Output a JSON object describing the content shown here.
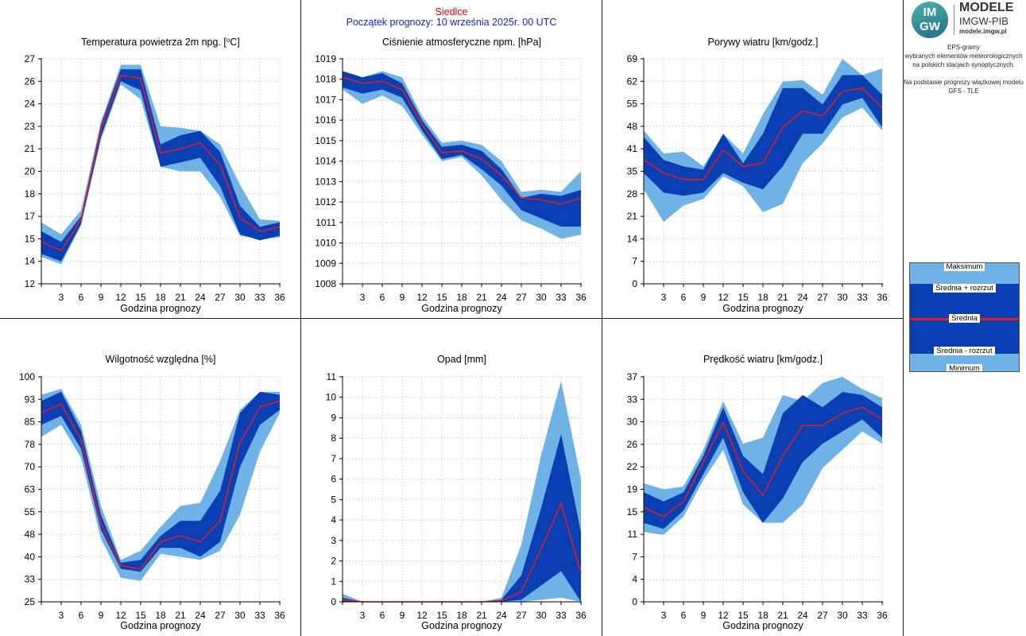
{
  "header": {
    "station": "Siedlce",
    "forecast_start": "Początek prognozy: 10 września 2025r. 00 UTC"
  },
  "logo": {
    "mark": "IM GW",
    "line1": "MODELE",
    "line2": "IMGW-PIB",
    "line3": "modele.imgw.pl"
  },
  "info": {
    "line1": "EPS-gramy",
    "line2": "wybranych elementów meteorologicznych",
    "line3": "na polskich stacjach  synoptycznych.",
    "line4": "Na podstawie prognozy wiązkowej modelu",
    "line5": "GFS - TLE"
  },
  "legend": {
    "max": "Maksimum",
    "upper": "Średnia + rozrzut",
    "mean": "Średnia",
    "lower": "Średnia - rozrzut",
    "min": "Minimum"
  },
  "colors": {
    "light": "#6fb2e6",
    "dark": "#0a3fb4",
    "mean": "#d9202a",
    "station": "#e0000b",
    "header_blue": "#1a1ad0"
  },
  "chart_data": [
    {
      "type": "area",
      "title": "Temperatura powietrza 2m npg. [°C]",
      "title_text": "Temperatura powietrza 2m npg. [",
      "title_sup": "o",
      "title_end": "C]",
      "xlabel": "Godzina prognozy",
      "x": [
        0,
        3,
        6,
        9,
        12,
        15,
        18,
        21,
        24,
        27,
        30,
        33,
        36
      ],
      "xlim": [
        0,
        36
      ],
      "ylim": [
        12,
        27
      ],
      "yticks": [
        "12",
        "14",
        "15",
        "17",
        "18",
        "20",
        "21",
        "23",
        "24",
        "26",
        "27"
      ],
      "ytick_values": [
        12,
        13.5,
        15,
        16.5,
        18,
        19.5,
        21,
        22.5,
        24,
        25.5,
        27
      ],
      "max": [
        16.1,
        15.3,
        16.9,
        22.8,
        26.6,
        26.6,
        22.5,
        22.4,
        22.2,
        21.3,
        18.6,
        16.3,
        16.2
      ],
      "upper": [
        15.5,
        14.8,
        16.5,
        22.6,
        26.3,
        26.3,
        21.3,
        21.9,
        22.2,
        20.8,
        17.2,
        15.8,
        16.1
      ],
      "mean": [
        14.8,
        14.2,
        16.3,
        22.3,
        25.9,
        25.7,
        20.7,
        21.0,
        21.4,
        19.9,
        16.4,
        15.5,
        15.8
      ],
      "lower": [
        14.0,
        13.5,
        16.0,
        21.8,
        25.5,
        24.9,
        19.8,
        20.1,
        20.4,
        18.5,
        15.3,
        14.9,
        15.2
      ],
      "min": [
        13.8,
        13.3,
        15.9,
        21.6,
        25.3,
        24.3,
        19.8,
        19.5,
        19.5,
        17.8,
        15.2,
        15.0,
        15.1
      ]
    },
    {
      "type": "area",
      "title": "Ciśnienie atmosferyczne npm. [hPa]",
      "xlabel": "Godzina prognozy",
      "x": [
        0,
        3,
        6,
        9,
        12,
        15,
        18,
        21,
        24,
        27,
        30,
        33,
        36
      ],
      "xlim": [
        0,
        36
      ],
      "ylim": [
        1008,
        1019
      ],
      "yticks": [
        "1008",
        "1009",
        "1010",
        "1011",
        "1012",
        "1013",
        "1014",
        "1015",
        "1016",
        "1017",
        "1018",
        "1019"
      ],
      "ytick_values": [
        1008,
        1009,
        1010,
        1011,
        1012,
        1013,
        1014,
        1015,
        1016,
        1017,
        1018,
        1019
      ],
      "max": [
        1018.4,
        1018.1,
        1018.4,
        1018.1,
        1016.2,
        1014.9,
        1015.0,
        1014.8,
        1014.0,
        1012.5,
        1012.6,
        1012.5,
        1013.5
      ],
      "upper": [
        1018.4,
        1018.1,
        1018.3,
        1017.8,
        1016.0,
        1014.7,
        1014.8,
        1014.5,
        1013.6,
        1012.2,
        1012.4,
        1012.3,
        1012.6
      ],
      "mean": [
        1018.1,
        1017.8,
        1017.9,
        1017.5,
        1015.8,
        1014.4,
        1014.5,
        1014.1,
        1013.3,
        1012.2,
        1012.1,
        1011.9,
        1012.2
      ],
      "lower": [
        1017.6,
        1017.3,
        1017.5,
        1017.1,
        1015.5,
        1014.1,
        1014.3,
        1013.6,
        1012.8,
        1011.6,
        1011.2,
        1010.8,
        1010.8
      ],
      "min": [
        1017.5,
        1016.8,
        1017.2,
        1016.7,
        1015.3,
        1014.0,
        1014.2,
        1013.3,
        1012.1,
        1011.1,
        1010.7,
        1010.2,
        1010.4
      ]
    },
    {
      "type": "area",
      "title": "Porywy wiatru [km/godz.]",
      "xlabel": "Godzina prognozy",
      "x": [
        0,
        3,
        6,
        9,
        12,
        15,
        18,
        21,
        24,
        27,
        30,
        33,
        36
      ],
      "xlim": [
        0,
        36
      ],
      "ylim": [
        0,
        69
      ],
      "yticks": [
        "0",
        "7",
        "14",
        "21",
        "28",
        "35",
        "41",
        "48",
        "55",
        "62",
        "69"
      ],
      "ytick_values": [
        0,
        6.9,
        13.8,
        20.7,
        27.6,
        34.5,
        41.4,
        48.3,
        55.2,
        62.1,
        69
      ],
      "max": [
        47,
        40,
        40.5,
        36,
        46,
        40,
        52,
        62,
        62.5,
        58,
        69,
        64,
        66
      ],
      "upper": [
        45,
        38,
        36,
        35,
        46,
        37,
        46,
        60,
        60,
        55,
        64,
        64,
        58
      ],
      "mean": [
        38,
        34,
        32,
        32,
        41,
        36,
        37,
        48,
        53,
        51.5,
        59,
        60,
        54
      ],
      "lower": [
        34,
        28,
        27,
        28,
        34,
        31,
        29,
        36,
        46,
        46,
        55,
        57,
        48
      ],
      "min": [
        29,
        19,
        24,
        26,
        33,
        30,
        22,
        24.5,
        37,
        43,
        51,
        54,
        47
      ]
    },
    {
      "type": "area",
      "title": "Wilgotność względna [%]",
      "xlabel": "Godzina prognozy",
      "x": [
        0,
        3,
        6,
        9,
        12,
        15,
        18,
        21,
        24,
        27,
        30,
        33,
        36
      ],
      "xlim": [
        0,
        36
      ],
      "ylim": [
        25,
        100
      ],
      "yticks": [
        "25",
        "33",
        "40",
        "48",
        "55",
        "63",
        "70",
        "78",
        "85",
        "93",
        "100"
      ],
      "ytick_values": [
        25,
        32.5,
        40,
        47.5,
        55,
        62.5,
        70,
        77.5,
        85,
        92.5,
        100
      ],
      "max": [
        94,
        96,
        84,
        57,
        39,
        42,
        50,
        57,
        58,
        72,
        89,
        95,
        95
      ],
      "upper": [
        92,
        95,
        82,
        54,
        38,
        39,
        47,
        52,
        52,
        62,
        88,
        95,
        94
      ],
      "mean": [
        88,
        91,
        79,
        51,
        37,
        36,
        45,
        47,
        45,
        52,
        78,
        90,
        92
      ],
      "lower": [
        84,
        87,
        76,
        49,
        36,
        35,
        43,
        43,
        40,
        45,
        70,
        84,
        89
      ],
      "min": [
        80,
        84,
        73,
        46,
        33,
        32,
        41,
        40,
        39,
        42,
        54,
        75,
        88
      ]
    },
    {
      "type": "area",
      "title": "Opad [mm]",
      "xlabel": "Godzina prognozy",
      "x": [
        0,
        3,
        6,
        9,
        12,
        15,
        18,
        21,
        24,
        27,
        30,
        33,
        36
      ],
      "xlim": [
        0,
        36
      ],
      "ylim": [
        0,
        11
      ],
      "yticks": [
        "0",
        "1",
        "2",
        "3",
        "4",
        "5",
        "6",
        "7",
        "8",
        "9",
        "10",
        "11"
      ],
      "ytick_values": [
        0,
        1,
        2,
        3,
        4,
        5,
        6,
        7,
        8,
        9,
        10,
        11
      ],
      "max": [
        0.4,
        0,
        0,
        0,
        0,
        0,
        0,
        0,
        0.2,
        2.8,
        7.2,
        10.8,
        6.0
      ],
      "upper": [
        0.2,
        0,
        0,
        0,
        0,
        0,
        0,
        0,
        0.1,
        1.3,
        4.6,
        8.2,
        3.4
      ],
      "mean": [
        0.1,
        0,
        0,
        0,
        0,
        0,
        0,
        0,
        0.05,
        0.5,
        2.6,
        4.8,
        1.4
      ],
      "lower": [
        0,
        0,
        0,
        0,
        0,
        0,
        0,
        0,
        0,
        0.1,
        0.8,
        1.5,
        0
      ],
      "min": [
        0,
        0,
        0,
        0,
        0,
        0,
        0,
        0,
        0,
        0,
        0.1,
        0.2,
        0
      ]
    },
    {
      "type": "area",
      "title": "Prędkość wiatru [km/godz.]",
      "xlabel": "Godzina prognozy",
      "x": [
        0,
        3,
        6,
        9,
        12,
        15,
        18,
        21,
        24,
        27,
        30,
        33,
        36
      ],
      "xlim": [
        0,
        36
      ],
      "ylim": [
        0,
        37
      ],
      "yticks": [
        "0",
        "4",
        "7",
        "11",
        "15",
        "19",
        "22",
        "26",
        "30",
        "33",
        "37"
      ],
      "ytick_values": [
        0,
        3.7,
        7.4,
        11.1,
        14.8,
        18.5,
        22.2,
        25.9,
        29.6,
        33.3,
        37
      ],
      "max": [
        19.5,
        18.5,
        19,
        25,
        33,
        26,
        27,
        34,
        33,
        36,
        37,
        35,
        33.5
      ],
      "upper": [
        18,
        16.5,
        18,
        24,
        32,
        24,
        21,
        31,
        34,
        32,
        34.5,
        34,
        32
      ],
      "mean": [
        15.5,
        14,
        16.5,
        23,
        29.5,
        21.5,
        17.5,
        24,
        29,
        29,
        31,
        32,
        30
      ],
      "lower": [
        13,
        12,
        15,
        21,
        27,
        18,
        13,
        17,
        23,
        26,
        28,
        30,
        27
      ],
      "min": [
        11.5,
        11,
        14,
        20,
        25,
        16,
        13,
        13,
        16,
        22,
        25,
        28,
        26
      ]
    }
  ]
}
